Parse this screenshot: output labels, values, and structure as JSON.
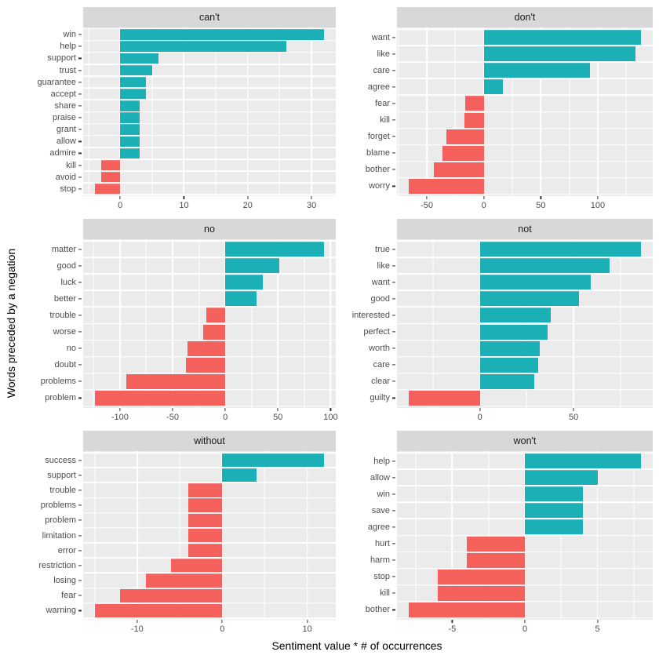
{
  "colors": {
    "positive_bar": "#1BB0B6",
    "negative_bar": "#F4605C",
    "panel_background": "#EBEBEB",
    "strip_background": "#D8D8D8",
    "gridline": "#FFFFFF",
    "axis_text": "#4D4D4D",
    "title_text": "#000000"
  },
  "chart_data": {
    "type": "bar",
    "orientation": "horizontal",
    "xlabel": "Sentiment value * # of occurrences",
    "ylabel": "Words preceded by a negation",
    "legend": "none",
    "grid": "on",
    "facet_layout": "2 columns x 3 rows, free x scales",
    "facets": [
      {
        "title": "can't",
        "categories": [
          "win",
          "help",
          "support",
          "trust",
          "guarantee",
          "accept",
          "share",
          "praise",
          "grant",
          "allow",
          "admire",
          "kill",
          "avoid",
          "stop"
        ],
        "values": [
          32,
          26,
          6,
          5,
          4,
          4,
          3,
          3,
          3,
          3,
          3,
          -3,
          -3,
          -4
        ],
        "xticks": [
          0,
          10,
          20,
          30
        ]
      },
      {
        "title": "don't",
        "categories": [
          "want",
          "like",
          "care",
          "agree",
          "fear",
          "kill",
          "forget",
          "blame",
          "bother",
          "worry"
        ],
        "values": [
          138,
          133,
          93,
          17,
          -16,
          -17,
          -33,
          -36,
          -44,
          -66
        ],
        "xticks": [
          -50,
          0,
          50,
          100
        ]
      },
      {
        "title": "no",
        "categories": [
          "matter",
          "good",
          "luck",
          "better",
          "trouble",
          "worse",
          "no",
          "doubt",
          "problems",
          "problem"
        ],
        "values": [
          94,
          51,
          36,
          30,
          -18,
          -21,
          -36,
          -37,
          -94,
          -124
        ],
        "xticks": [
          -100,
          -50,
          0,
          50,
          100
        ]
      },
      {
        "title": "not",
        "categories": [
          "true",
          "like",
          "want",
          "good",
          "interested",
          "perfect",
          "worth",
          "care",
          "clear",
          "guilty"
        ],
        "values": [
          86,
          69,
          59,
          53,
          38,
          36,
          32,
          31,
          29,
          -38
        ],
        "xticks": [
          0,
          50
        ]
      },
      {
        "title": "without",
        "categories": [
          "success",
          "support",
          "trouble",
          "problems",
          "problem",
          "limitation",
          "error",
          "restriction",
          "losing",
          "fear",
          "warning"
        ],
        "values": [
          12,
          4,
          -4,
          -4,
          -4,
          -4,
          -4,
          -6,
          -9,
          -12,
          -15
        ],
        "xticks": [
          -10,
          0,
          10
        ]
      },
      {
        "title": "won't",
        "categories": [
          "help",
          "allow",
          "win",
          "save",
          "agree",
          "hurt",
          "harm",
          "stop",
          "kill",
          "bother"
        ],
        "values": [
          8,
          5,
          4,
          4,
          4,
          -4,
          -4,
          -6,
          -6,
          -8
        ],
        "xticks": [
          -5,
          0,
          5
        ]
      }
    ]
  }
}
